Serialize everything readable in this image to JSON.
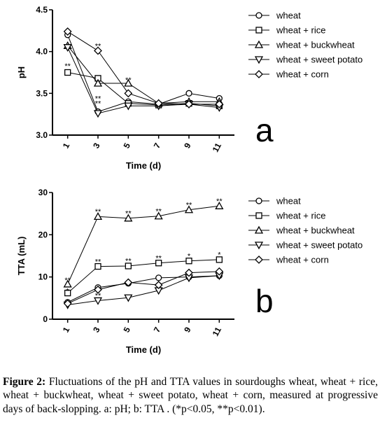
{
  "chart_data": [
    {
      "type": "line",
      "panel_label": "a",
      "xlabel": "Time (d)",
      "ylabel": "pH",
      "x": [
        1,
        3,
        5,
        7,
        9,
        11
      ],
      "x_tick_labels": [
        "1",
        "3",
        "5",
        "7",
        "9",
        "11"
      ],
      "ylim": [
        3.0,
        4.5
      ],
      "y_ticks": [
        "3.0",
        "3.5",
        "4.0",
        "4.5"
      ],
      "legend_position": "right",
      "series": [
        {
          "name": "wheat",
          "marker": "circle",
          "values": [
            4.2,
            3.28,
            3.4,
            3.37,
            3.5,
            3.44
          ]
        },
        {
          "name": "wheat + rice",
          "marker": "square",
          "values": [
            3.75,
            3.68,
            3.38,
            3.36,
            3.38,
            3.35
          ]
        },
        {
          "name": "wheat + buckwheat",
          "marker": "triangle-up",
          "values": [
            4.07,
            3.62,
            3.62,
            3.38,
            3.4,
            3.4
          ]
        },
        {
          "name": "wheat + sweet potato",
          "marker": "triangle-down",
          "values": [
            4.05,
            3.26,
            3.35,
            3.35,
            3.37,
            3.33
          ]
        },
        {
          "name": "wheat + corn",
          "marker": "diamond",
          "values": [
            4.24,
            4.01,
            3.5,
            3.38,
            3.37,
            3.37
          ]
        }
      ],
      "annotations": [
        {
          "x": 1,
          "y": 3.83,
          "text": "**"
        },
        {
          "x": 3,
          "y": 4.07,
          "text": "**"
        },
        {
          "x": 3,
          "y": 3.44,
          "text": "**"
        },
        {
          "x": 3,
          "y": 3.38,
          "text": "**"
        },
        {
          "x": 5,
          "y": 3.66,
          "text": "**"
        }
      ]
    },
    {
      "type": "line",
      "panel_label": "b",
      "xlabel": "Time (d)",
      "ylabel": "TTA (mL)",
      "x": [
        1,
        3,
        5,
        7,
        9,
        11
      ],
      "x_tick_labels": [
        "1",
        "3",
        "5",
        "7",
        "9",
        "11"
      ],
      "ylim": [
        0,
        30
      ],
      "y_ticks": [
        "0",
        "10",
        "20",
        "30"
      ],
      "legend_position": "right",
      "series": [
        {
          "name": "wheat",
          "marker": "circle",
          "values": [
            4.0,
            7.5,
            8.5,
            9.8,
            10.0,
            10.3
          ]
        },
        {
          "name": "wheat + rice",
          "marker": "square",
          "values": [
            6.2,
            12.5,
            12.6,
            13.3,
            13.8,
            14.1
          ]
        },
        {
          "name": "wheat + buckwheat",
          "marker": "triangle-up",
          "values": [
            8.3,
            24.3,
            23.9,
            24.4,
            25.9,
            26.8
          ]
        },
        {
          "name": "wheat + sweet potato",
          "marker": "triangle-down",
          "values": [
            3.4,
            4.4,
            5.1,
            6.8,
            9.8,
            10.3
          ]
        },
        {
          "name": "wheat + corn",
          "marker": "diamond",
          "values": [
            3.7,
            7.0,
            8.7,
            8.1,
            11.0,
            11.3
          ]
        }
      ],
      "annotations": [
        {
          "x": 1,
          "y": 9.3,
          "text": "**"
        },
        {
          "x": 1,
          "y": 6.7,
          "text": "*"
        },
        {
          "x": 3,
          "y": 25.5,
          "text": "**"
        },
        {
          "x": 3,
          "y": 13.7,
          "text": "**"
        },
        {
          "x": 3,
          "y": 5.6,
          "text": "**"
        },
        {
          "x": 5,
          "y": 25.1,
          "text": "**"
        },
        {
          "x": 5,
          "y": 13.8,
          "text": "**"
        },
        {
          "x": 7,
          "y": 25.6,
          "text": "**"
        },
        {
          "x": 7,
          "y": 14.5,
          "text": "**"
        },
        {
          "x": 9,
          "y": 27.1,
          "text": "**"
        },
        {
          "x": 9,
          "y": 15.0,
          "text": "*"
        },
        {
          "x": 11,
          "y": 28.0,
          "text": "**"
        },
        {
          "x": 11,
          "y": 15.3,
          "text": "*"
        }
      ]
    }
  ],
  "caption": {
    "label": "Figure 2:",
    "text": " Fluctuations of the pH and TTA values in sourdoughs wheat, wheat + rice, wheat + buckwheat, wheat + sweet potato, wheat + corn, measured at progressive days of back-slopping. a: pH; b: TTA . (*p<0.05, **p<0.01)."
  }
}
